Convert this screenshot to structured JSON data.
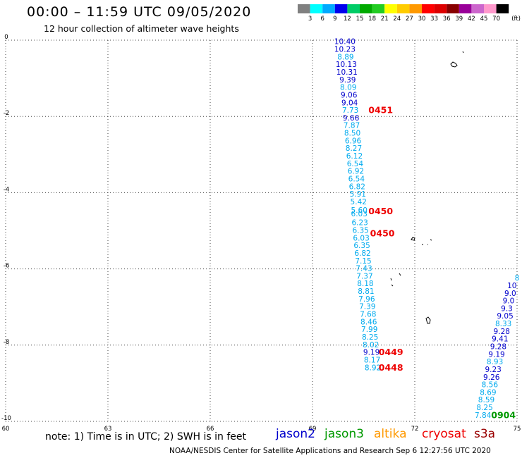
{
  "title": "00:00 – 11:59 UTC 09/05/2020",
  "subtitle": "12 hour collection of altimeter wave heights",
  "credit": "NOAA/NESDIS Center for Satellite Applications and Research    Sep  6 12:27:56 UTC 2020",
  "note": "note:  1) Time is in UTC; 2) SWH is in feet",
  "satellites": [
    {
      "name": "jason2",
      "color": "#0000cc"
    },
    {
      "name": "jason3",
      "color": "#009900"
    },
    {
      "name": "altika",
      "color": "#ff9900"
    },
    {
      "name": "cryosat",
      "color": "#ee0000"
    },
    {
      "name": "s3a",
      "color": "#990000"
    }
  ],
  "legend": {
    "labels": [
      "3",
      "6",
      "9",
      "12",
      "15",
      "18",
      "21",
      "24",
      "27",
      "30",
      "33",
      "36",
      "39",
      "42",
      "45",
      "70"
    ],
    "unit": "(ft)",
    "colors": [
      "#808080",
      "#00ffff",
      "#00aaff",
      "#0000ee",
      "#00cc66",
      "#00aa00",
      "#22cc22",
      "#ffff00",
      "#ffcc00",
      "#ff9900",
      "#ff0000",
      "#dd0000",
      "#880000",
      "#990099",
      "#cc66cc",
      "#ff99cc",
      "#000000"
    ]
  },
  "chart_data": {
    "type": "scatter",
    "title": "00:00 – 11:59 UTC 09/05/2020",
    "subtitle": "12 hour collection of altimeter wave heights",
    "xlabel": "",
    "ylabel": "",
    "xlim": [
      60,
      75
    ],
    "ylim": [
      -10,
      0
    ],
    "xticks": [
      60,
      63,
      66,
      69,
      72,
      75
    ],
    "yticks": [
      0,
      -2,
      -4,
      -6,
      -8,
      -10
    ],
    "grid": true,
    "series": [
      {
        "name": "",
        "color_by_value": true,
        "points": [
          {
            "x": 69.95,
            "y": -0.05,
            "v": "10.40"
          },
          {
            "x": 69.95,
            "y": -0.25,
            "v": "10.23"
          },
          {
            "x": 69.97,
            "y": -0.45,
            "v": "8.89"
          },
          {
            "x": 69.99,
            "y": -0.65,
            "v": "10.13"
          },
          {
            "x": 70.01,
            "y": -0.85,
            "v": "10.31"
          },
          {
            "x": 70.03,
            "y": -1.05,
            "v": "9.39"
          },
          {
            "x": 70.05,
            "y": -1.25,
            "v": "8.09"
          },
          {
            "x": 70.07,
            "y": -1.45,
            "v": "9.06"
          },
          {
            "x": 70.09,
            "y": -1.65,
            "v": "9.04"
          },
          {
            "x": 70.11,
            "y": -1.85,
            "v": "7.73"
          },
          {
            "x": 70.13,
            "y": -2.05,
            "v": "9.66"
          },
          {
            "x": 70.15,
            "y": -2.25,
            "v": "7.87"
          },
          {
            "x": 70.17,
            "y": -2.45,
            "v": "8.50"
          },
          {
            "x": 70.19,
            "y": -2.65,
            "v": "6.96"
          },
          {
            "x": 70.21,
            "y": -2.85,
            "v": "8.27"
          },
          {
            "x": 70.23,
            "y": -3.05,
            "v": "6.12"
          },
          {
            "x": 70.25,
            "y": -3.25,
            "v": "6.54"
          },
          {
            "x": 70.27,
            "y": -3.45,
            "v": "6.92"
          },
          {
            "x": 70.29,
            "y": -3.65,
            "v": "6.54"
          },
          {
            "x": 70.31,
            "y": -3.85,
            "v": "6.82"
          },
          {
            "x": 70.33,
            "y": -4.05,
            "v": "5.91"
          },
          {
            "x": 70.35,
            "y": -4.25,
            "v": "5.42"
          },
          {
            "x": 70.37,
            "y": -4.47,
            "v": "5.60"
          },
          {
            "x": 70.37,
            "y": -4.57,
            "v": "6.03"
          },
          {
            "x": 70.39,
            "y": -4.8,
            "v": "6.23"
          },
          {
            "x": 70.41,
            "y": -5.0,
            "v": "6.35"
          },
          {
            "x": 70.43,
            "y": -5.2,
            "v": "6.03"
          },
          {
            "x": 70.45,
            "y": -5.4,
            "v": "6.35"
          },
          {
            "x": 70.47,
            "y": -5.6,
            "v": "6.82"
          },
          {
            "x": 70.49,
            "y": -5.8,
            "v": "7.15"
          },
          {
            "x": 70.51,
            "y": -6.0,
            "v": "7.43"
          },
          {
            "x": 70.53,
            "y": -6.2,
            "v": "7.37"
          },
          {
            "x": 70.55,
            "y": -6.4,
            "v": "8.18"
          },
          {
            "x": 70.57,
            "y": -6.6,
            "v": "8.81"
          },
          {
            "x": 70.59,
            "y": -6.8,
            "v": "7.96"
          },
          {
            "x": 70.61,
            "y": -7.0,
            "v": "7.39"
          },
          {
            "x": 70.63,
            "y": -7.2,
            "v": "7.68"
          },
          {
            "x": 70.65,
            "y": -7.4,
            "v": "8.46"
          },
          {
            "x": 70.67,
            "y": -7.6,
            "v": "7.99"
          },
          {
            "x": 70.69,
            "y": -7.8,
            "v": "8.25"
          },
          {
            "x": 70.71,
            "y": -8.0,
            "v": "8.02"
          },
          {
            "x": 70.73,
            "y": -8.2,
            "v": "9.19"
          },
          {
            "x": 70.75,
            "y": -8.4,
            "v": "8.17"
          },
          {
            "x": 70.77,
            "y": -8.6,
            "v": "8.92"
          }
        ]
      },
      {
        "name": "",
        "color_by_value": true,
        "points": [
          {
            "x": 75.0,
            "y": -6.25,
            "v": "8"
          },
          {
            "x": 74.85,
            "y": -6.45,
            "v": "10"
          },
          {
            "x": 74.8,
            "y": -6.65,
            "v": "9.0"
          },
          {
            "x": 74.75,
            "y": -6.85,
            "v": "9.0"
          },
          {
            "x": 74.7,
            "y": -7.05,
            "v": "9.3"
          },
          {
            "x": 74.65,
            "y": -7.25,
            "v": "9.05"
          },
          {
            "x": 74.6,
            "y": -7.45,
            "v": "8.33"
          },
          {
            "x": 74.55,
            "y": -7.65,
            "v": "9.28"
          },
          {
            "x": 74.5,
            "y": -7.85,
            "v": "9.41"
          },
          {
            "x": 74.45,
            "y": -8.05,
            "v": "9.28"
          },
          {
            "x": 74.4,
            "y": -8.25,
            "v": "9.19"
          },
          {
            "x": 74.35,
            "y": -8.45,
            "v": "8.93"
          },
          {
            "x": 74.3,
            "y": -8.65,
            "v": "9.23"
          },
          {
            "x": 74.25,
            "y": -8.85,
            "v": "9.26"
          },
          {
            "x": 74.2,
            "y": -9.05,
            "v": "8.56"
          },
          {
            "x": 74.15,
            "y": -9.25,
            "v": "8.69"
          },
          {
            "x": 74.1,
            "y": -9.45,
            "v": "8.59"
          },
          {
            "x": 74.05,
            "y": -9.65,
            "v": "8.25"
          },
          {
            "x": 74.0,
            "y": -9.85,
            "v": "7.84"
          }
        ]
      }
    ],
    "pass_times": [
      {
        "label": "0451",
        "x": 71.0,
        "y": -1.85,
        "color": "#ee0000"
      },
      {
        "label": "0450",
        "x": 71.0,
        "y": -4.5,
        "color": "#ee0000"
      },
      {
        "label": "0450",
        "x": 71.05,
        "y": -5.08,
        "color": "#ee0000"
      },
      {
        "label": "0449",
        "x": 71.3,
        "y": -8.2,
        "color": "#ee0000"
      },
      {
        "label": "0448",
        "x": 71.3,
        "y": -8.6,
        "color": "#ee0000"
      },
      {
        "label": "0904",
        "x": 74.6,
        "y": -9.85,
        "color": "#009900"
      }
    ],
    "color_scale": {
      "thresholds": [
        3,
        6,
        9,
        12,
        15,
        18,
        21,
        24,
        27,
        30,
        33,
        36,
        39,
        42,
        45,
        70
      ],
      "unit": "ft"
    }
  }
}
